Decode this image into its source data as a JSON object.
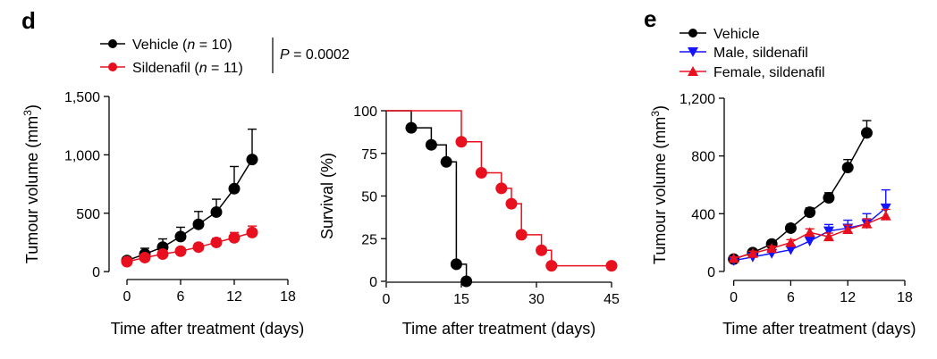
{
  "panels": {
    "d": {
      "letter": "d"
    },
    "e": {
      "letter": "e"
    }
  },
  "legend_d": {
    "items": [
      {
        "prefix": "Vehicle (",
        "n": "n",
        "suffix": " = 10)",
        "color": "#000000",
        "marker": "circle"
      },
      {
        "prefix": "Sildenafil (",
        "n": "n",
        "suffix": " = 11)",
        "color": "#e8101e",
        "marker": "circle"
      }
    ],
    "p_label": "P",
    "p_value": " = 0.0002"
  },
  "legend_e": {
    "items": [
      {
        "label": "Vehicle",
        "color": "#000000",
        "marker": "circle"
      },
      {
        "label": "Male, sildenafil",
        "color": "#1414ff",
        "marker": "triangle-down"
      },
      {
        "label": "Female, sildenafil",
        "color": "#e8101e",
        "marker": "triangle-up"
      }
    ]
  },
  "chart_data": [
    {
      "id": "tumour-d",
      "type": "line",
      "xlabel": "Time after treatment (days)",
      "ylabel": "Tumour volume (mm3)",
      "ylabel_main": "Tumour volume (mm",
      "ylabel_sup": "3",
      "ylabel_end": ")",
      "xlim": [
        -2,
        18
      ],
      "ylim": [
        -60,
        1500
      ],
      "xticks": [
        0,
        6,
        12,
        18
      ],
      "yticks": [
        0,
        500,
        1000,
        1500
      ],
      "ytick_labels": [
        "0",
        "500",
        "1,000",
        "1,500"
      ],
      "series": [
        {
          "name": "Vehicle",
          "color": "#000000",
          "marker": "circle",
          "x": [
            0,
            2,
            4,
            6,
            8,
            10,
            12,
            14
          ],
          "y": [
            95,
            150,
            210,
            300,
            405,
            510,
            710,
            960
          ],
          "err": [
            15,
            50,
            70,
            80,
            110,
            110,
            190,
            260
          ]
        },
        {
          "name": "Sildenafil",
          "color": "#e8101e",
          "marker": "circle",
          "x": [
            0,
            2,
            4,
            6,
            8,
            10,
            12,
            14
          ],
          "y": [
            85,
            120,
            150,
            175,
            210,
            250,
            290,
            335
          ],
          "err": [
            10,
            15,
            20,
            25,
            30,
            35,
            45,
            55
          ]
        }
      ]
    },
    {
      "id": "survival-d",
      "type": "line",
      "xlabel": "Time after treatment (days)",
      "ylabel": "Survival (%)",
      "xlim": [
        0,
        45
      ],
      "ylim": [
        0,
        100
      ],
      "xticks": [
        0,
        15,
        30,
        45
      ],
      "yticks": [
        0,
        25,
        50,
        75,
        100
      ],
      "series": [
        {
          "name": "Vehicle",
          "color": "#000000",
          "marker": "circle",
          "steps": [
            [
              0,
              100
            ],
            [
              5,
              90
            ],
            [
              9,
              80
            ],
            [
              12,
              70
            ],
            [
              14,
              10
            ],
            [
              16,
              0
            ]
          ],
          "points": [
            [
              5,
              90
            ],
            [
              9,
              80
            ],
            [
              12,
              70
            ],
            [
              14,
              10
            ],
            [
              16,
              0
            ]
          ],
          "end_x": 16
        },
        {
          "name": "Sildenafil",
          "color": "#e8101e",
          "marker": "circle",
          "steps": [
            [
              0,
              100
            ],
            [
              15,
              81.8
            ],
            [
              19,
              63.6
            ],
            [
              23,
              54.5
            ],
            [
              25,
              45.5
            ],
            [
              27,
              27.3
            ],
            [
              31,
              18.2
            ],
            [
              33,
              9.1
            ]
          ],
          "points": [
            [
              15,
              81.8
            ],
            [
              19,
              63.6
            ],
            [
              23,
              54.5
            ],
            [
              25,
              45.5
            ],
            [
              27,
              27.3
            ],
            [
              31,
              18.2
            ],
            [
              33,
              9.1
            ],
            [
              45,
              9.1
            ]
          ],
          "end_x": 45
        }
      ]
    },
    {
      "id": "tumour-e",
      "type": "line",
      "xlabel": "Time after treatment (days)",
      "ylabel": "Tumour volume (mm3)",
      "ylabel_main": "Tumour volume (mm",
      "ylabel_sup": "3",
      "ylabel_end": ")",
      "xlim": [
        -1,
        18
      ],
      "ylim": [
        -50,
        1200
      ],
      "xticks": [
        0,
        6,
        12,
        18
      ],
      "yticks": [
        0,
        400,
        800,
        1200
      ],
      "ytick_labels": [
        "0",
        "400",
        "800",
        "1,200"
      ],
      "series": [
        {
          "name": "Vehicle",
          "color": "#000000",
          "marker": "circle",
          "x": [
            0,
            2,
            4,
            6,
            8,
            10,
            12,
            14
          ],
          "y": [
            85,
            130,
            190,
            300,
            410,
            510,
            720,
            960
          ],
          "err": [
            10,
            15,
            20,
            25,
            30,
            35,
            55,
            85
          ]
        },
        {
          "name": "Male, sildenafil",
          "color": "#1414ff",
          "marker": "triangle-down",
          "x": [
            0,
            2,
            4,
            6,
            8,
            10,
            12,
            14,
            16
          ],
          "y": [
            75,
            100,
            125,
            150,
            210,
            280,
            300,
            330,
            440
          ],
          "err": [
            10,
            15,
            15,
            20,
            30,
            45,
            55,
            70,
            125
          ]
        },
        {
          "name": "Female, sildenafil",
          "color": "#e8101e",
          "marker": "triangle-up",
          "x": [
            0,
            2,
            4,
            6,
            8,
            10,
            12,
            14,
            16
          ],
          "y": [
            90,
            125,
            160,
            200,
            270,
            240,
            290,
            330,
            385
          ],
          "err": [
            10,
            15,
            15,
            20,
            25,
            25,
            30,
            35,
            45
          ]
        }
      ]
    }
  ]
}
